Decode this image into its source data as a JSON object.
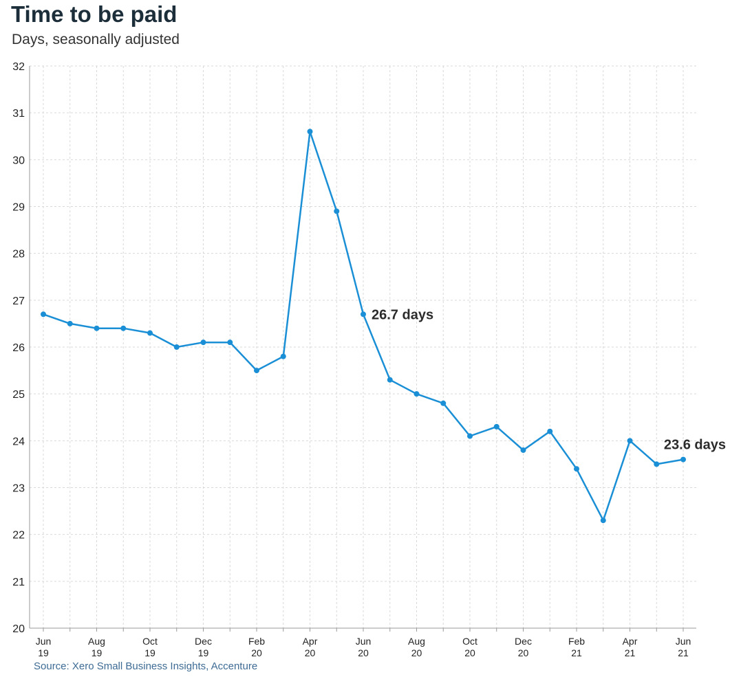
{
  "title": "Time to be paid",
  "subtitle": "Days, seasonally adjusted",
  "source": "Source: Xero Small Business Insights, Accenture",
  "colors": {
    "line": "#1a8fd6",
    "grid": "#d9d9d9",
    "axis": "#999999"
  },
  "chart_data": {
    "type": "line",
    "ylim": [
      20,
      32
    ],
    "yticks": [
      20,
      21,
      22,
      23,
      24,
      25,
      26,
      27,
      28,
      29,
      30,
      31,
      32
    ],
    "grid": true,
    "x": [
      "Jun 19",
      "Jul 19",
      "Aug 19",
      "Sep 19",
      "Oct 19",
      "Nov 19",
      "Dec 19",
      "Jan 20",
      "Feb 20",
      "Mar 20",
      "Apr 20",
      "May 20",
      "Jun 20",
      "Jul 20",
      "Aug 20",
      "Sep 20",
      "Oct 20",
      "Nov 20",
      "Dec 20",
      "Jan 21",
      "Feb 21",
      "Mar 21",
      "Apr 21",
      "May 21",
      "Jun 21"
    ],
    "xtick_labels": [
      {
        "index": 0,
        "month": "Jun",
        "year": "19"
      },
      {
        "index": 2,
        "month": "Aug",
        "year": "19"
      },
      {
        "index": 4,
        "month": "Oct",
        "year": "19"
      },
      {
        "index": 6,
        "month": "Dec",
        "year": "19"
      },
      {
        "index": 8,
        "month": "Feb",
        "year": "20"
      },
      {
        "index": 10,
        "month": "Apr",
        "year": "20"
      },
      {
        "index": 12,
        "month": "Jun",
        "year": "20"
      },
      {
        "index": 14,
        "month": "Aug",
        "year": "20"
      },
      {
        "index": 16,
        "month": "Oct",
        "year": "20"
      },
      {
        "index": 18,
        "month": "Dec",
        "year": "20"
      },
      {
        "index": 20,
        "month": "Feb",
        "year": "21"
      },
      {
        "index": 22,
        "month": "Apr",
        "year": "21"
      },
      {
        "index": 24,
        "month": "Jun",
        "year": "21"
      }
    ],
    "series": [
      {
        "values": [
          26.7,
          26.5,
          26.4,
          26.4,
          26.3,
          26.0,
          26.1,
          26.1,
          25.5,
          25.8,
          30.6,
          28.9,
          26.7,
          25.3,
          25.0,
          24.8,
          24.1,
          24.3,
          23.8,
          24.2,
          23.4,
          22.3,
          24.0,
          23.5,
          23.6
        ]
      }
    ],
    "annotations": [
      {
        "index": 12,
        "text": "26.7 days"
      },
      {
        "index": 24,
        "text": "23.6 days"
      }
    ]
  }
}
